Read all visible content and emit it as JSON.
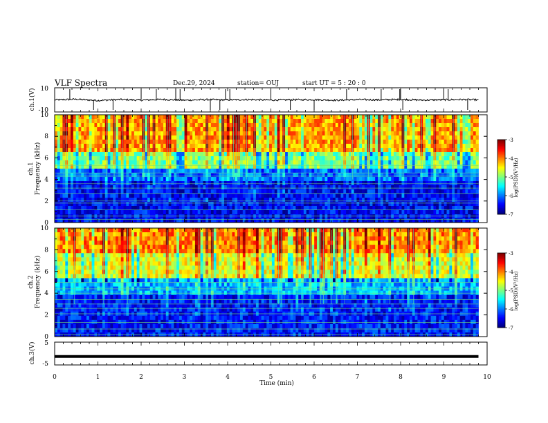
{
  "header": {
    "title": "VLF Spectra",
    "date": "Dec.29, 2024",
    "station": "station= OUJ",
    "start": "start  UT =   5 : 20 : 0"
  },
  "colors": {
    "colormap": [
      "#00007f",
      "#0000ff",
      "#007fff",
      "#00ffff",
      "#7fff7f",
      "#ffff00",
      "#ff7f00",
      "#ff0000",
      "#7f0000"
    ],
    "trace": "#000000"
  },
  "chart_data": [
    {
      "type": "line",
      "panel": "ch1",
      "ylabel": "ch.1(V)",
      "ylim": [
        -10,
        10
      ],
      "yticks": [
        "10",
        "-10"
      ],
      "x": [
        0,
        0.5,
        1,
        1.5,
        2,
        2.5,
        3,
        3.5,
        4,
        4.5,
        5,
        5.5,
        6,
        6.5,
        7,
        7.5,
        8,
        8.5,
        9,
        9.5,
        9.8
      ],
      "values": [
        0,
        0.5,
        -0.5,
        0.3,
        -0.2,
        0.4,
        -0.3,
        0.2,
        0,
        0.3,
        -0.2,
        0.1,
        0.2,
        -0.3,
        0.2,
        0,
        0.4,
        -0.2,
        0.1,
        0.3,
        0
      ]
    },
    {
      "type": "heatmap",
      "panel": "ch1-spectrogram",
      "ylabel": "ch.1\nFrequency (kHz)",
      "ylabel_line1": "ch.1",
      "ylabel_line2": "Frequency (kHz)",
      "ylim": [
        0,
        10
      ],
      "yticks": [
        "0",
        "2",
        "4",
        "6",
        "8",
        "10"
      ],
      "colorbar": {
        "label": "log(PSD)(V²/Hz)",
        "range": [
          -7,
          -3
        ],
        "ticks": [
          "-3",
          "-4",
          "-5",
          "-6",
          "-7"
        ]
      }
    },
    {
      "type": "heatmap",
      "panel": "ch2-spectrogram",
      "ylabel_line1": "ch.2",
      "ylabel_line2": "Frequency (kHz)",
      "ylim": [
        0,
        10
      ],
      "yticks": [
        "0",
        "2",
        "4",
        "6",
        "8",
        "10"
      ],
      "colorbar": {
        "label": "log(PSD)(V²/Hz)",
        "range": [
          -7,
          -3
        ],
        "ticks": [
          "-3",
          "-4",
          "-5",
          "-6",
          "-7"
        ]
      }
    },
    {
      "type": "line",
      "panel": "ch3",
      "ylabel": "ch.3(V)",
      "ylim": [
        -5,
        5
      ],
      "yticks": [
        "5",
        "-5"
      ],
      "x": [
        0,
        9.8
      ],
      "values": [
        -1.3,
        -1.3
      ]
    }
  ],
  "xaxis": {
    "label": "Time  (min)",
    "range": [
      0,
      10
    ],
    "ticks": [
      "0",
      "1",
      "2",
      "3",
      "4",
      "5",
      "6",
      "7",
      "8",
      "9",
      "10"
    ]
  }
}
